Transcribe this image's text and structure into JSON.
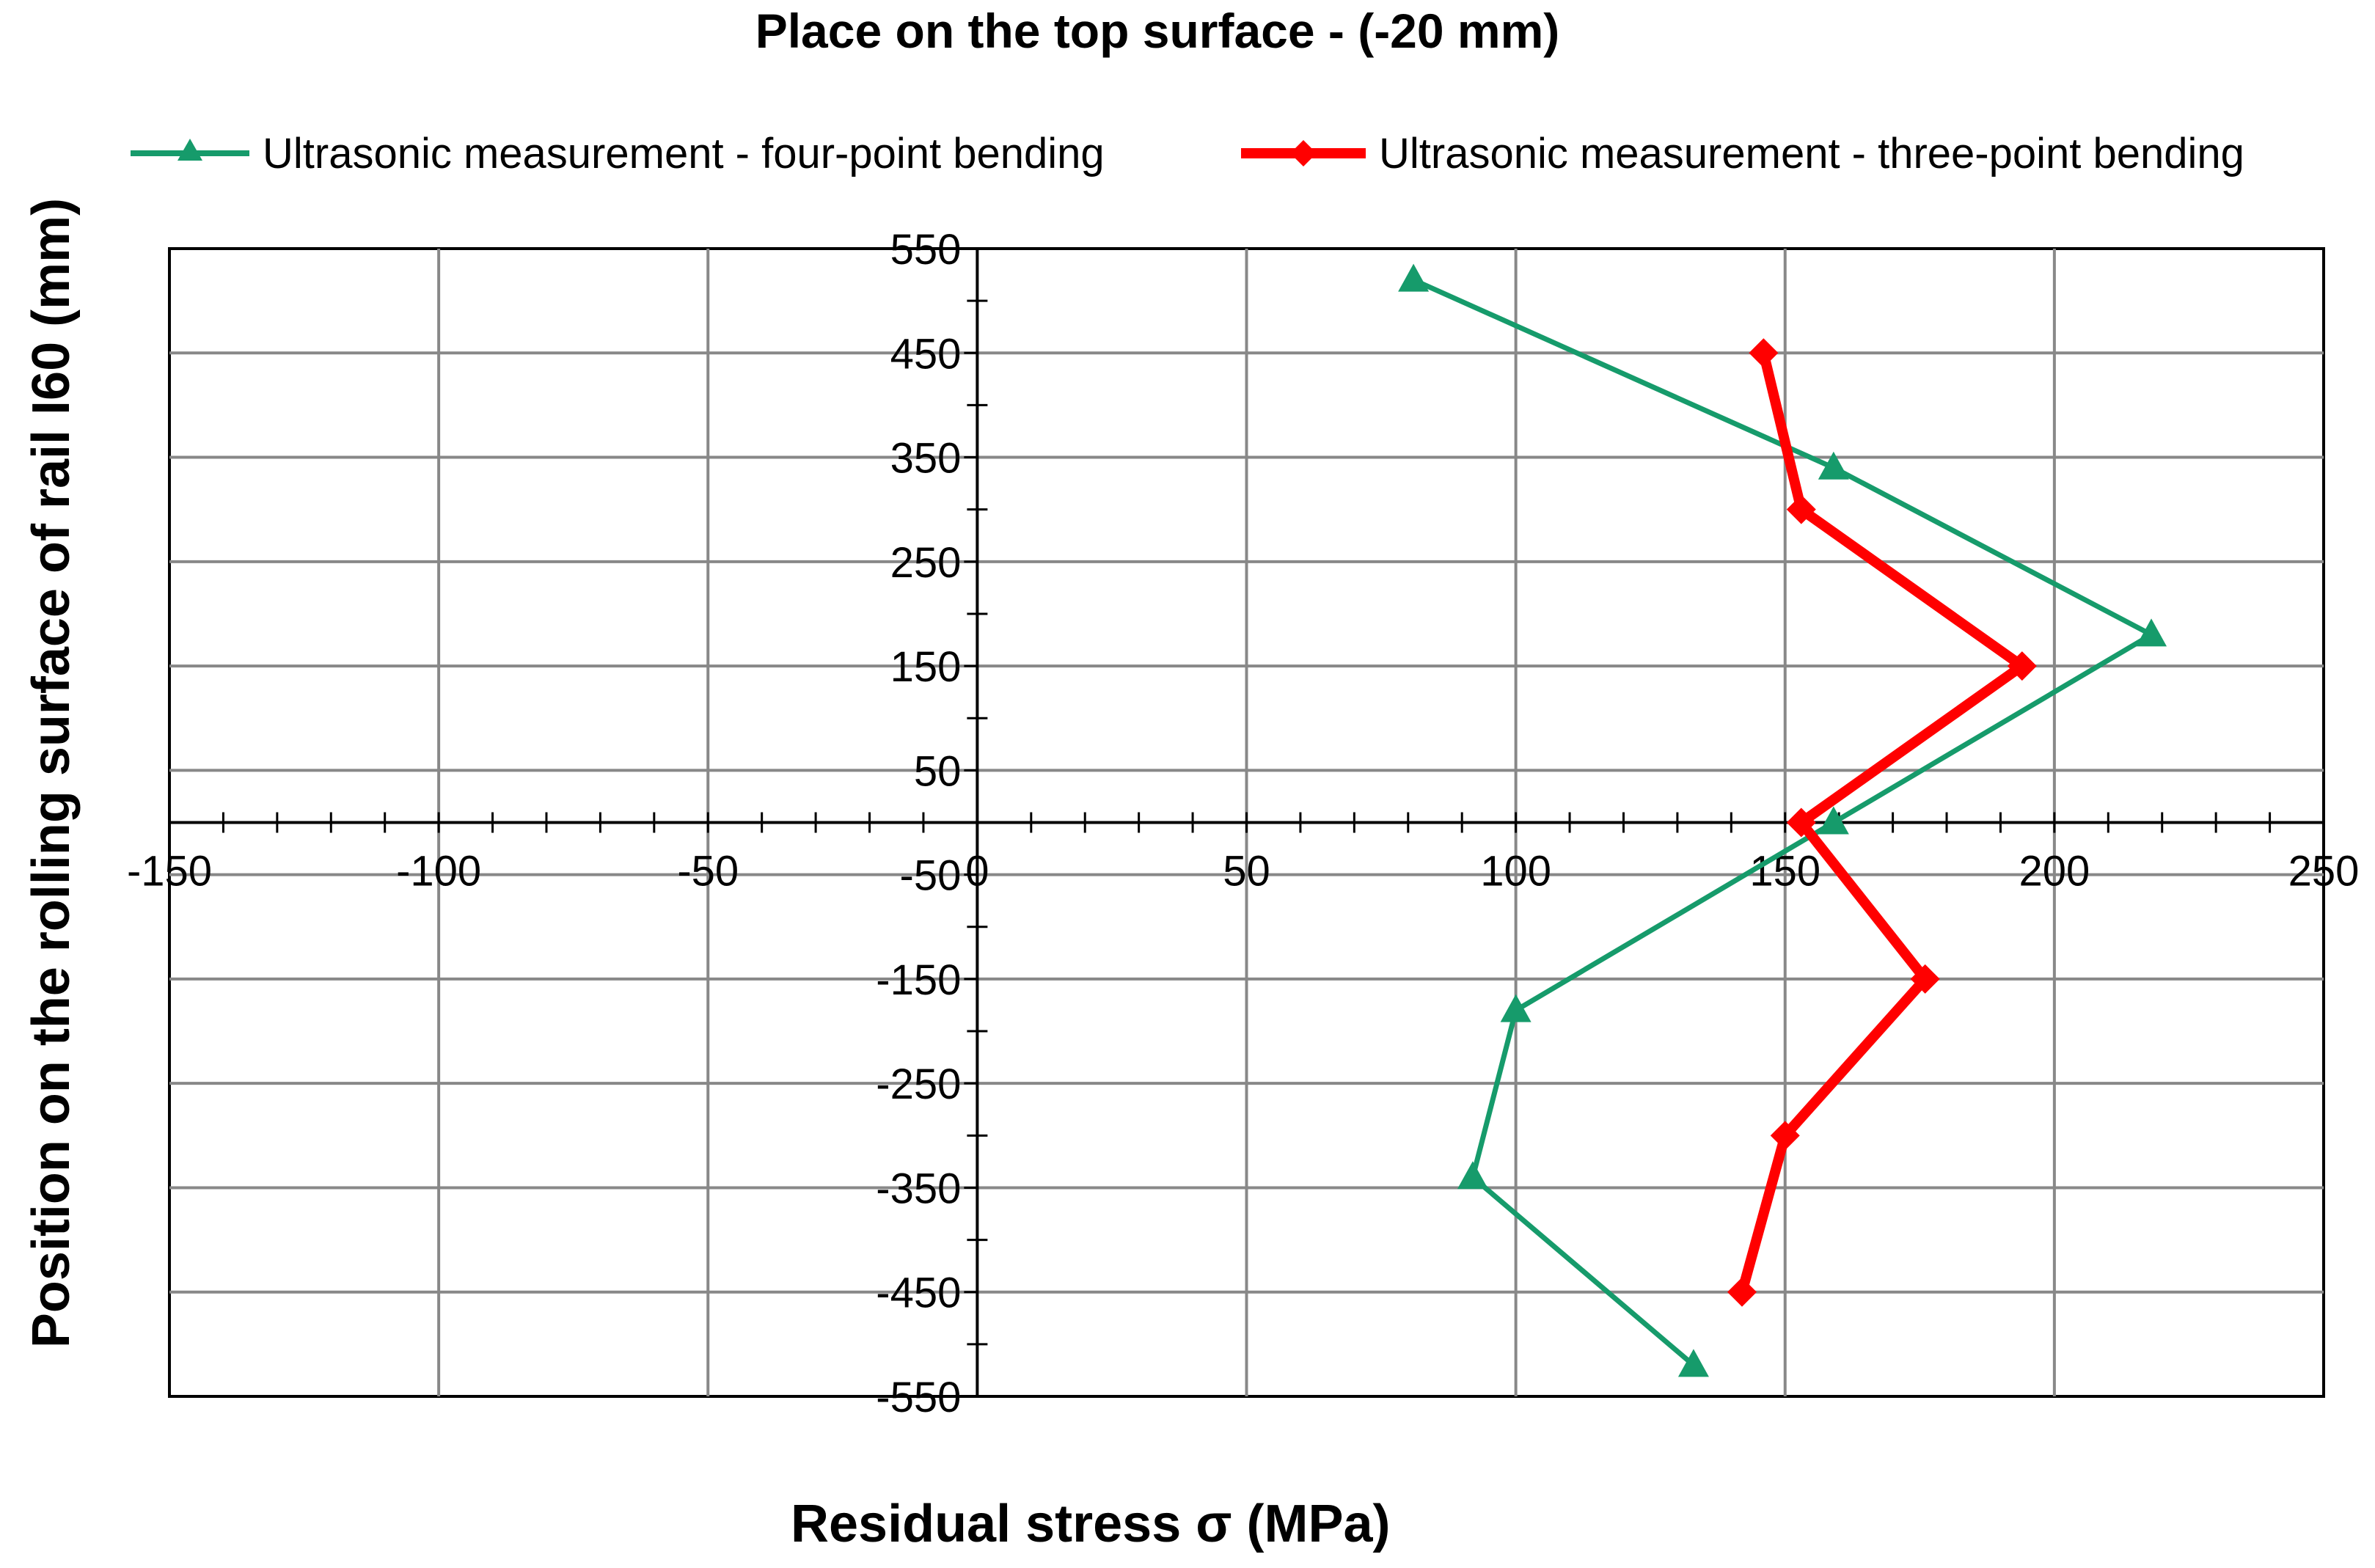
{
  "chart_data": {
    "type": "line",
    "title": "Place on the top surface - (-20 mm)",
    "xlabel": "Residual stress  σ (MPa)",
    "ylabel": "Position on the rolling surface of rail I60 (mm)",
    "xlim": [
      -150,
      250
    ],
    "ylim": [
      -550,
      550
    ],
    "xticks": [
      -150,
      -100,
      -50,
      0,
      50,
      100,
      150,
      200,
      250
    ],
    "yticks": [
      550,
      450,
      350,
      250,
      150,
      50,
      -50,
      -150,
      -250,
      -350,
      -450,
      -550
    ],
    "grid": true,
    "legend_position": "top",
    "series": [
      {
        "name": "Ultrasonic measurement - four-point bending",
        "color": "#169B6B",
        "marker": "triangle",
        "points": [
          {
            "x": 81,
            "y": 520
          },
          {
            "x": 159,
            "y": 340
          },
          {
            "x": 218,
            "y": 180
          },
          {
            "x": 159,
            "y": 0
          },
          {
            "x": 100,
            "y": -180
          },
          {
            "x": 92,
            "y": -340
          },
          {
            "x": 133,
            "y": -520
          }
        ]
      },
      {
        "name": "Ultrasonic measurement - three-point bending",
        "color": "#FF0000",
        "marker": "diamond",
        "points": [
          {
            "x": 146,
            "y": 450
          },
          {
            "x": 153,
            "y": 300
          },
          {
            "x": 194,
            "y": 150
          },
          {
            "x": 153,
            "y": 0
          },
          {
            "x": 176,
            "y": -150
          },
          {
            "x": 150,
            "y": -300
          },
          {
            "x": 142,
            "y": -450
          }
        ]
      }
    ]
  }
}
